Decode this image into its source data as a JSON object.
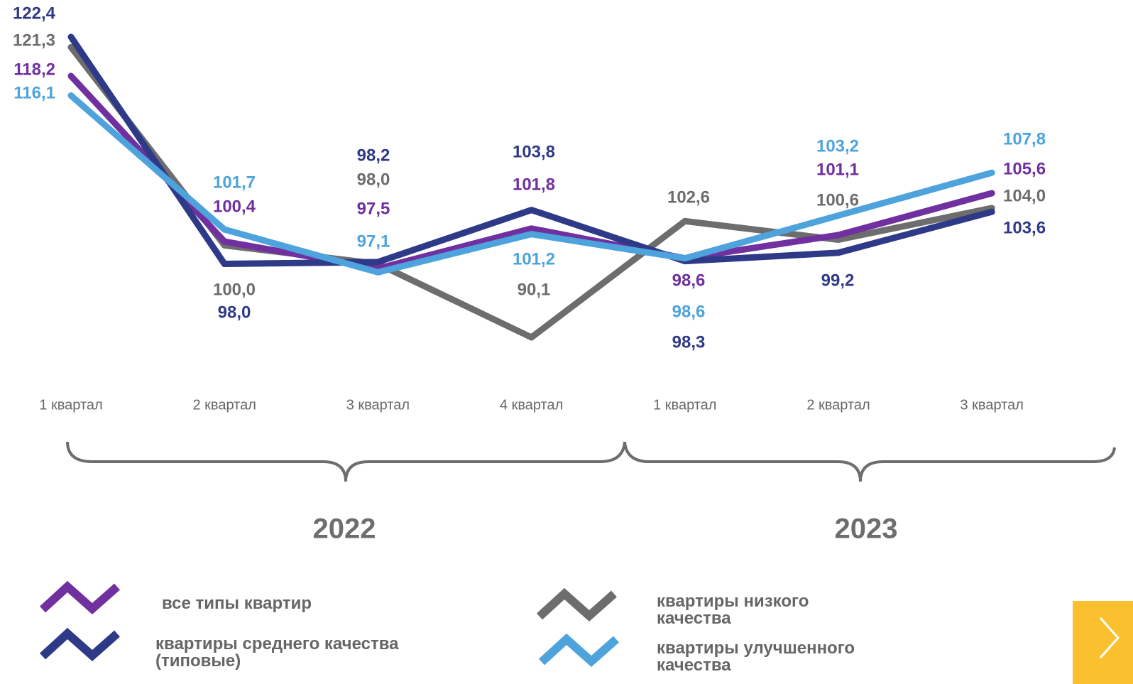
{
  "chart_data": {
    "type": "line",
    "categories": [
      "1 квартал",
      "2 квартал",
      "3 квартал",
      "4 квартал",
      "1 квартал",
      "2 квартал",
      "3 квартал"
    ],
    "year_groups": [
      "2022",
      "2023"
    ],
    "series": [
      {
        "name": "все типы квартир",
        "color": "#7030a0",
        "values": [
          118.2,
          100.4,
          97.5,
          101.8,
          98.6,
          101.1,
          105.6
        ],
        "value_labels": [
          "118,2",
          "100,4",
          "97,5",
          "101,8",
          "98,6",
          "101,1",
          "105,6"
        ]
      },
      {
        "name": "квартиры среднего качества (типовые)",
        "color": "#2e3a87",
        "values": [
          122.4,
          98.0,
          98.2,
          103.8,
          98.3,
          99.2,
          103.6
        ],
        "value_labels": [
          "122,4",
          "98,0",
          "98,2",
          "103,8",
          "98,3",
          "99,2",
          "103,6"
        ]
      },
      {
        "name": "квартиры низкого качества",
        "color": "#6d6d6d",
        "values": [
          121.3,
          100.0,
          98.0,
          90.1,
          102.6,
          100.6,
          104.0
        ],
        "value_labels": [
          "121,3",
          "100,0",
          "98,0",
          "90,1",
          "102,6",
          "100,6",
          "104,0"
        ]
      },
      {
        "name": "квартиры улучшенного качества",
        "color": "#4ea3dc",
        "values": [
          116.1,
          101.7,
          97.1,
          101.2,
          98.6,
          103.2,
          107.8
        ],
        "value_labels": [
          "116,1",
          "101,7",
          "97,1",
          "101,2",
          "98,6",
          "103,2",
          "107,8"
        ]
      }
    ]
  }
}
